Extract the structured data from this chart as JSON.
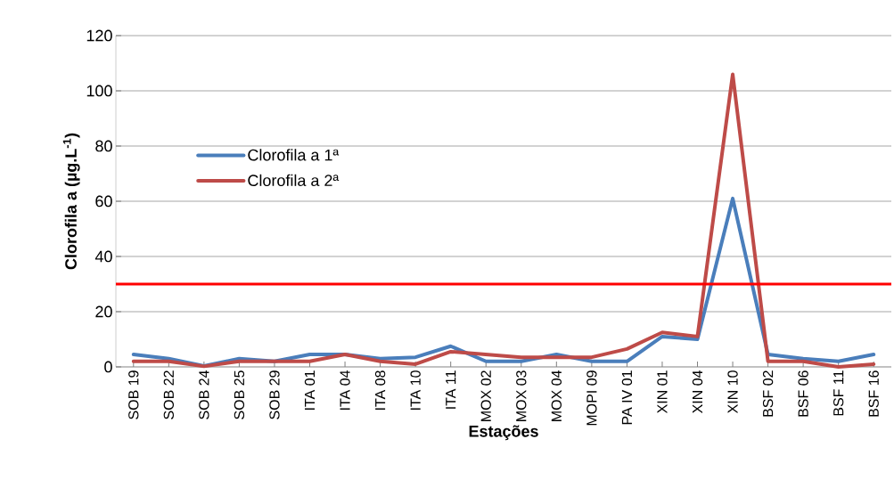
{
  "chart_data": {
    "type": "line",
    "xlabel": "Estações",
    "ylabel": "Clorofila a (µg.L$^{-1}$)",
    "categories": [
      "SOB 19",
      "SOB 22",
      "SOB 24",
      "SOB 25",
      "SOB 29",
      "ITA 01",
      "ITA 04",
      "ITA 08",
      "ITA 10",
      "ITA 11",
      "MOX 02",
      "MOX 03",
      "MOX 04",
      "MOPI 09",
      "PA IV 01",
      "XIN 01",
      "XIN 04",
      "XIN 10",
      "BSF 02",
      "BSF 06",
      "BSF 11",
      "BSF 16"
    ],
    "series": [
      {
        "name": "Clorofila a 1ª",
        "color": "#4a7ebb",
        "values": [
          4.5,
          3,
          0.3,
          3,
          2,
          4.5,
          4.5,
          3,
          3.5,
          7.5,
          2,
          2,
          4.5,
          2,
          2,
          11,
          10,
          61,
          4.5,
          3,
          2,
          4.5
        ]
      },
      {
        "name": "Clorofila a 2ª",
        "color": "#be4b48",
        "values": [
          2,
          2,
          0.2,
          2,
          2,
          2,
          4.5,
          2,
          1,
          5.5,
          4.5,
          3.5,
          3.5,
          3.5,
          6.5,
          12.5,
          11,
          106,
          2,
          2,
          0,
          1
        ]
      }
    ],
    "ylim": [
      0,
      120
    ],
    "yticks": [
      0,
      20,
      40,
      60,
      80,
      100,
      120
    ],
    "grid": "y",
    "legend": "left",
    "line_style": "solid",
    "ref_lines": [
      {
        "axis": "y",
        "value": 30,
        "color": "#ff0000"
      }
    ]
  }
}
